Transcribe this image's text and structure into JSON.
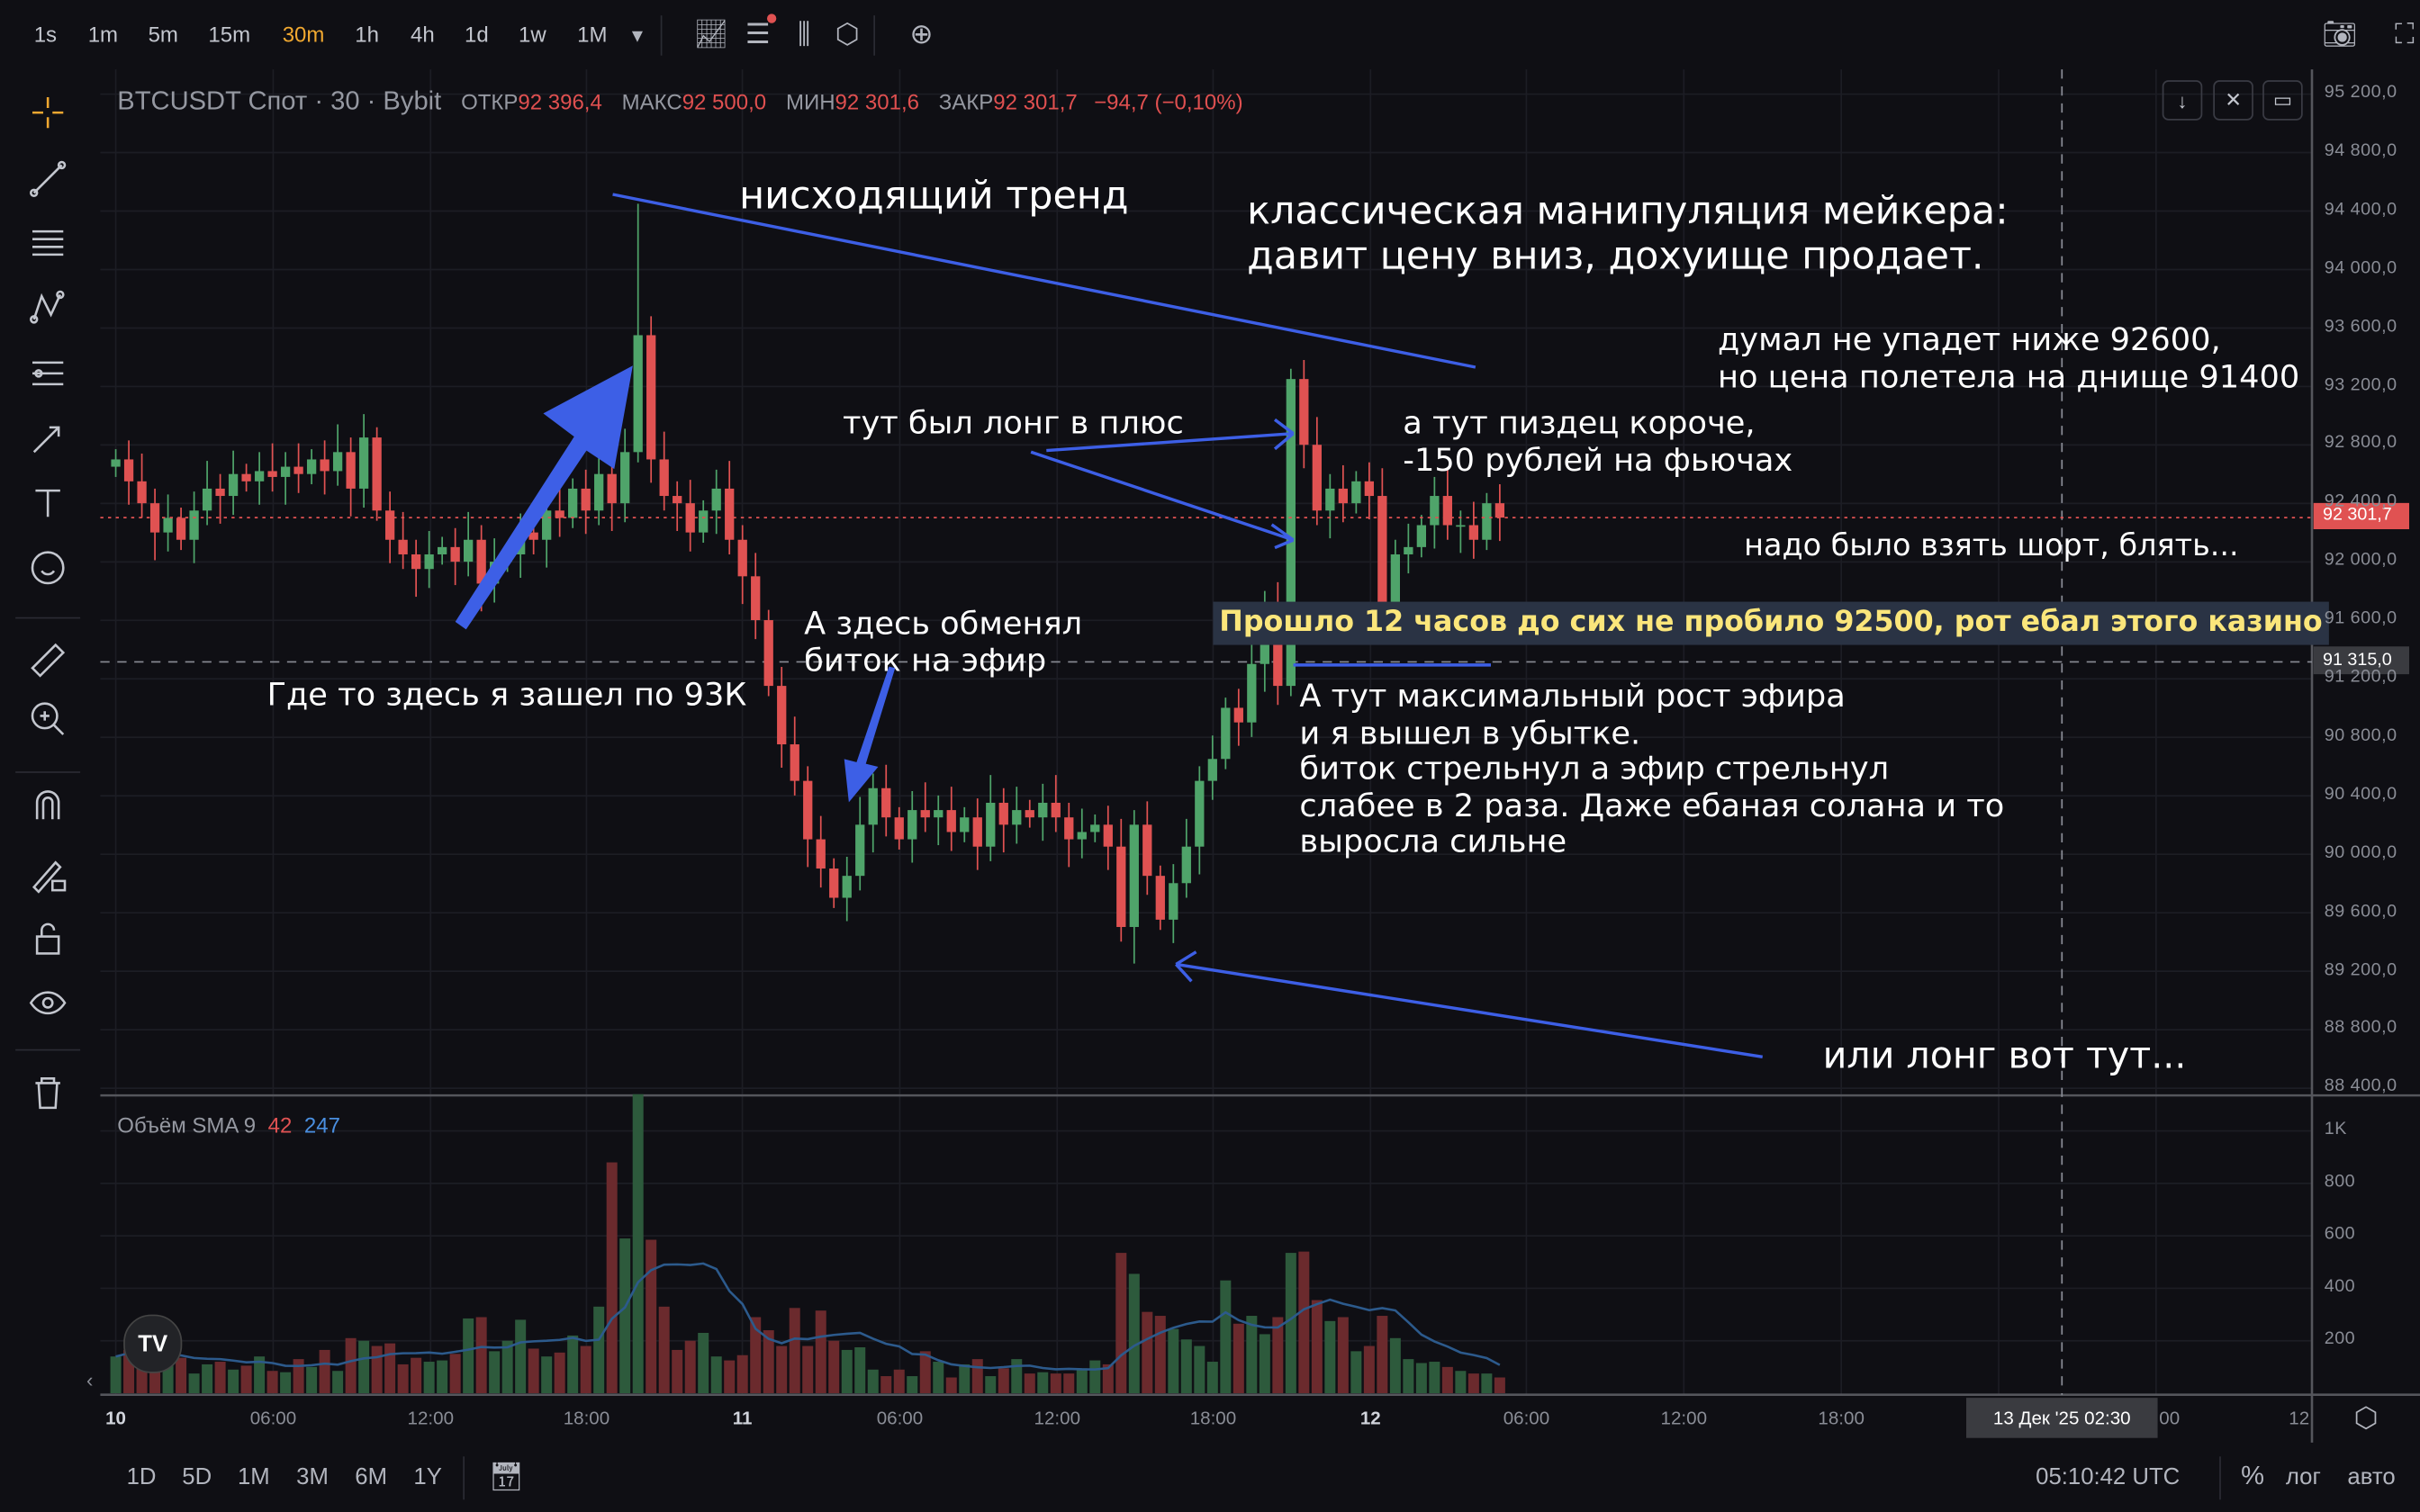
{
  "toolbar": {
    "timeframes": [
      "1s",
      "1m",
      "5m",
      "15m",
      "30m",
      "1h",
      "4h",
      "1d",
      "1w",
      "1M"
    ],
    "active_timeframe": "30m",
    "icons": [
      "indicators-icon",
      "alert-icon",
      "candle-type-icon",
      "settings-icon",
      "add-icon"
    ]
  },
  "legend": {
    "symbol": "BTCUSDT Спот · 30 · Bybit",
    "open_label": "ОТКР",
    "open": "92 396,4",
    "high_label": "МАКС",
    "high": "92 500,0",
    "low_label": "МИН",
    "low": "92 301,6",
    "close_label": "ЗАКР",
    "close": "92 301,7",
    "change": "−94,7 (−0,10%)"
  },
  "volume_legend": {
    "label": "Объём SMA 9",
    "value1": "42",
    "value2": "247"
  },
  "price_axis": {
    "ticks": [
      "95 200,0",
      "94 800,0",
      "94 400,0",
      "94 000,0",
      "93 600,0",
      "93 200,0",
      "92 800,0",
      "92 400,0",
      "92 000,0",
      "91 600,0",
      "91 200,0",
      "90 800,0",
      "90 400,0",
      "90 000,0",
      "89 600,0",
      "89 200,0",
      "88 800,0",
      "88 400,0"
    ],
    "current_price": "92 301,7",
    "crosshair_price": "91 315,0"
  },
  "volume_axis": {
    "ticks": [
      "1K",
      "800",
      "600",
      "400",
      "200"
    ]
  },
  "time_axis": {
    "ticks": [
      "10",
      "06:00",
      "12:00",
      "18:00",
      "11",
      "06:00",
      "12:00",
      "18:00",
      "12",
      "06:00",
      "12:00",
      "18:00"
    ],
    "crosshair_time": "13 Дек '25  02:30",
    "cut_labels": [
      "00",
      "12:"
    ]
  },
  "bottom_bar": {
    "ranges": [
      "1D",
      "5D",
      "1M",
      "3M",
      "6M",
      "1Y"
    ],
    "clock": "05:10:42 UTC",
    "percent": "%",
    "log": "лог",
    "auto": "авто"
  },
  "annotations": [
    "нисходящий тренд",
    "классическая манипуляция мейкера:\nдавит цену вниз, дохуище продает.",
    "думал не упадет ниже 92600,\nно цена полетела на днище 91400",
    "тут был лонг в плюс",
    "а тут пиздец короче,\n-150 рублей на фьючах",
    "надо было взять шорт, блять...",
    "Прошло 12 часов до сих не пробило 92500, рот ебал этого казино",
    "А здесь обменял\nбиток на эфир",
    "Где то здесь я зашел по 93К",
    "А тут максимальный рост эфира\nи я вышел в убытке.\nбиток стрельнул а эфир стрельнул\nслабее в 2 раза. Даже ебаная солана и то\nвыросла сильне",
    "или лонг вот тут..."
  ],
  "colors": {
    "up": "#4fa46a",
    "down": "#e05252",
    "vol_up": "#2d5a3c",
    "vol_down": "#6b2a2d",
    "annotation_line": "#3d5fe6",
    "sma": "#2c5a8c",
    "highlight_text": "#fbe67b",
    "accent": "#f0a830"
  },
  "chart_data": {
    "type": "candlestick",
    "interval": "30m",
    "x_start": "10 Dec 00:00",
    "price_range": [
      88400,
      95200
    ],
    "volume_range": [
      0,
      1000
    ],
    "first_open": 92650,
    "close": [
      92700,
      92550,
      92400,
      92200,
      92300,
      92150,
      92350,
      92500,
      92450,
      92600,
      92550,
      92620,
      92580,
      92650,
      92600,
      92700,
      92620,
      92750,
      92500,
      92850,
      92350,
      92150,
      92050,
      91950,
      92050,
      92100,
      92000,
      92150,
      91850,
      92000,
      92050,
      92200,
      92150,
      92350,
      92300,
      92500,
      92350,
      92600,
      92400,
      92750,
      93550,
      92700,
      92450,
      92400,
      92200,
      92350,
      92500,
      92150,
      91900,
      91600,
      91150,
      90750,
      90500,
      90100,
      89900,
      89700,
      89850,
      90200,
      90450,
      90250,
      90100,
      90300,
      90250,
      90300,
      90150,
      90250,
      90050,
      90350,
      90200,
      90300,
      90250,
      90350,
      90250,
      90100,
      90150,
      90200,
      90050,
      89500,
      90200,
      89850,
      89550,
      89800,
      90050,
      90500,
      90650,
      91000,
      90900,
      91300,
      91700,
      91150,
      93250,
      92800,
      92350,
      92500,
      92400,
      92550,
      92450,
      91650,
      92050,
      92100,
      92250,
      92450,
      92250,
      92250,
      92150,
      92400,
      92301.7
    ],
    "extremes": {
      "high_max": 94450,
      "low_min": 89250
    },
    "volume": [
      140,
      165,
      120,
      130,
      175,
      135,
      75,
      110,
      120,
      90,
      105,
      140,
      85,
      80,
      130,
      100,
      165,
      85,
      210,
      200,
      180,
      190,
      110,
      135,
      120,
      125,
      150,
      285,
      290,
      160,
      200,
      280,
      170,
      140,
      155,
      220,
      180,
      330,
      880,
      590,
      1140,
      585,
      330,
      165,
      200,
      230,
      140,
      125,
      145,
      290,
      240,
      180,
      325,
      180,
      315,
      200,
      165,
      175,
      90,
      65,
      90,
      65,
      160,
      120,
      60,
      110,
      130,
      65,
      95,
      130,
      75,
      80,
      75,
      75,
      95,
      125,
      110,
      535,
      455,
      310,
      295,
      245,
      205,
      180,
      120,
      430,
      265,
      295,
      225,
      290,
      535,
      540,
      355,
      275,
      290,
      160,
      180,
      295,
      210,
      130,
      115,
      120,
      100,
      85,
      75,
      75,
      60
    ],
    "sma_period": 9
  }
}
